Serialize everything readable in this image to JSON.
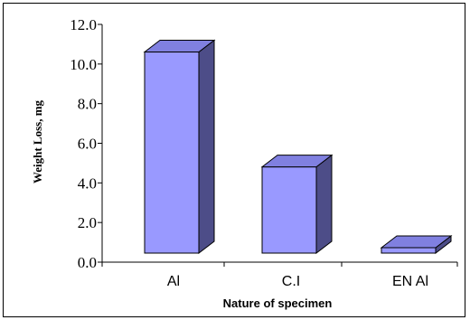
{
  "chart_data": {
    "type": "bar",
    "style": "3d-column",
    "categories": [
      "Al",
      "C.I",
      "EN Al"
    ],
    "values": [
      11.2,
      5.4,
      0.7
    ],
    "xlabel": "Nature of specimen",
    "ylabel": "Weight Loss, mg",
    "ylim": [
      0,
      12
    ],
    "yticks": [
      "0.0",
      "2.0",
      "4.0",
      "6.0",
      "8.0",
      "10.0",
      "12.0"
    ],
    "grid": false,
    "legend": "none",
    "colors": {
      "front": "#9999ff",
      "side": "#4d4d88",
      "top": "#8080e0",
      "edge": "#000000"
    }
  }
}
